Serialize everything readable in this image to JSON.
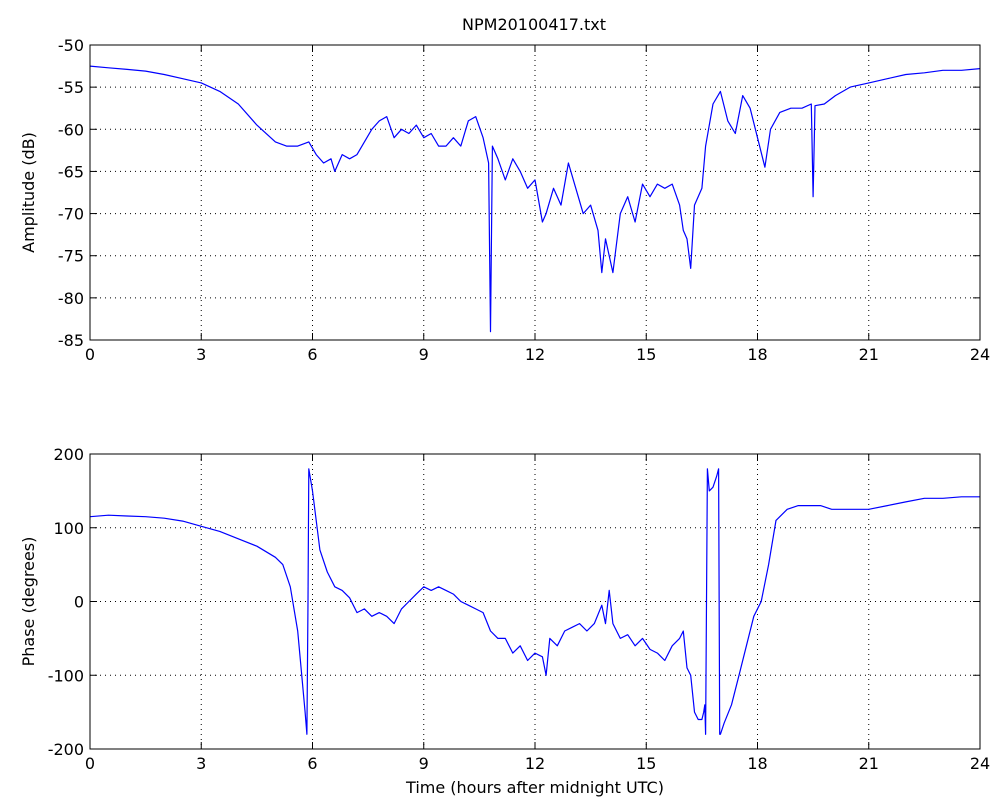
{
  "figure": {
    "title": "NPM20100417.txt"
  },
  "chart_data": [
    {
      "type": "line",
      "title": "NPM20100417.txt",
      "xlabel": "",
      "ylabel": "Amplitude (dB)",
      "xlim": [
        0,
        24
      ],
      "ylim": [
        -85,
        -50
      ],
      "xticks": [
        0,
        3,
        6,
        9,
        12,
        15,
        18,
        21,
        24
      ],
      "yticks": [
        -85,
        -80,
        -75,
        -70,
        -65,
        -60,
        -55,
        -50
      ],
      "grid": true,
      "line_color": "#0000ff",
      "series": [
        {
          "x": [
            0,
            0.5,
            1,
            1.5,
            2,
            2.5,
            3,
            3.5,
            4,
            4.5,
            5,
            5.3,
            5.6,
            5.9,
            6.1,
            6.3,
            6.5,
            6.6,
            6.8,
            7.0,
            7.2,
            7.4,
            7.6,
            7.8,
            8.0,
            8.2,
            8.4,
            8.6,
            8.8,
            9.0,
            9.2,
            9.4,
            9.6,
            9.8,
            10.0,
            10.2,
            10.4,
            10.6,
            10.75,
            10.8,
            10.85,
            11.0,
            11.2,
            11.4,
            11.6,
            11.8,
            12.0,
            12.2,
            12.3,
            12.5,
            12.7,
            12.9,
            13.1,
            13.3,
            13.5,
            13.7,
            13.8,
            13.9,
            14.1,
            14.3,
            14.5,
            14.7,
            14.9,
            15.1,
            15.3,
            15.5,
            15.7,
            15.9,
            16.0,
            16.1,
            16.2,
            16.3,
            16.5,
            16.6,
            16.8,
            17.0,
            17.2,
            17.4,
            17.6,
            17.8,
            18.0,
            18.2,
            18.35,
            18.6,
            18.9,
            19.2,
            19.45,
            19.5,
            19.55,
            19.8,
            20.1,
            20.5,
            21,
            21.5,
            22,
            22.5,
            23,
            23.5,
            24
          ],
          "y": [
            -52.5,
            -52.7,
            -52.9,
            -53.1,
            -53.5,
            -54,
            -54.5,
            -55.5,
            -57,
            -59.5,
            -61.5,
            -62,
            -62,
            -61.5,
            -63,
            -64,
            -63.5,
            -65,
            -63,
            -63.5,
            -63,
            -61.5,
            -60,
            -59,
            -58.5,
            -61,
            -60,
            -60.5,
            -59.5,
            -61,
            -60.5,
            -62,
            -62,
            -61,
            -62,
            -59,
            -58.5,
            -61,
            -64,
            -84,
            -62,
            -63.5,
            -66,
            -63.5,
            -65,
            -67,
            -66,
            -71,
            -70,
            -67,
            -69,
            -64,
            -67,
            -70,
            -69,
            -72,
            -77,
            -73,
            -77,
            -70,
            -68,
            -71,
            -66.5,
            -68,
            -66.5,
            -67,
            -66.5,
            -69,
            -72,
            -73,
            -76.5,
            -69,
            -67,
            -62,
            -57,
            -55.5,
            -59,
            -60.5,
            -56,
            -57.5,
            -61,
            -64.5,
            -60,
            -58,
            -57.5,
            -57.5,
            -57,
            -68,
            -57.2,
            -57,
            -56,
            -55,
            -54.5,
            -54,
            -53.5,
            -53.3,
            -53,
            -53,
            -52.8
          ]
        }
      ]
    },
    {
      "type": "line",
      "title": "",
      "xlabel": "Time (hours after midnight UTC)",
      "ylabel": "Phase (degrees)",
      "xlim": [
        0,
        24
      ],
      "ylim": [
        -200,
        200
      ],
      "xticks": [
        0,
        3,
        6,
        9,
        12,
        15,
        18,
        21,
        24
      ],
      "yticks": [
        -200,
        -100,
        0,
        100,
        200
      ],
      "grid": true,
      "line_color": "#0000ff",
      "series": [
        {
          "x": [
            0,
            0.5,
            1,
            1.5,
            2,
            2.5,
            3,
            3.5,
            4,
            4.5,
            5,
            5.2,
            5.4,
            5.6,
            5.8,
            5.85,
            5.88,
            5.9,
            6.0,
            6.2,
            6.4,
            6.6,
            6.8,
            7.0,
            7.2,
            7.4,
            7.6,
            7.8,
            8.0,
            8.2,
            8.4,
            8.6,
            8.8,
            9.0,
            9.2,
            9.4,
            9.6,
            9.8,
            10.0,
            10.2,
            10.4,
            10.6,
            10.8,
            11.0,
            11.2,
            11.4,
            11.6,
            11.8,
            12.0,
            12.2,
            12.3,
            12.4,
            12.6,
            12.8,
            13.0,
            13.2,
            13.4,
            13.6,
            13.8,
            13.9,
            14.0,
            14.1,
            14.3,
            14.5,
            14.7,
            14.9,
            15.1,
            15.3,
            15.5,
            15.7,
            15.9,
            16.0,
            16.1,
            16.2,
            16.3,
            16.4,
            16.5,
            16.55,
            16.58,
            16.6,
            16.65,
            16.7,
            16.8,
            16.9,
            16.95,
            16.98,
            17.0,
            17.1,
            17.3,
            17.5,
            17.7,
            17.9,
            18.1,
            18.3,
            18.5,
            18.8,
            19.1,
            19.4,
            19.7,
            20.0,
            20.5,
            21,
            21.5,
            22,
            22.5,
            23,
            23.5,
            24
          ],
          "y": [
            115,
            117,
            116,
            115,
            113,
            109,
            102,
            95,
            85,
            75,
            60,
            50,
            20,
            -40,
            -150,
            -180,
            0,
            180,
            150,
            70,
            40,
            20,
            15,
            5,
            -15,
            -10,
            -20,
            -15,
            -20,
            -30,
            -10,
            0,
            10,
            20,
            15,
            20,
            15,
            10,
            0,
            -5,
            -10,
            -15,
            -40,
            -50,
            -50,
            -70,
            -60,
            -80,
            -70,
            -75,
            -100,
            -50,
            -60,
            -40,
            -35,
            -30,
            -40,
            -30,
            -5,
            -30,
            15,
            -30,
            -50,
            -45,
            -60,
            -50,
            -65,
            -70,
            -80,
            -60,
            -50,
            -40,
            -90,
            -100,
            -150,
            -160,
            -160,
            -150,
            -140,
            -180,
            180,
            150,
            155,
            170,
            180,
            -180,
            -180,
            -165,
            -140,
            -100,
            -60,
            -20,
            0,
            50,
            110,
            125,
            130,
            130,
            130,
            125,
            125,
            125,
            130,
            135,
            140,
            140,
            142,
            142
          ]
        }
      ]
    }
  ]
}
